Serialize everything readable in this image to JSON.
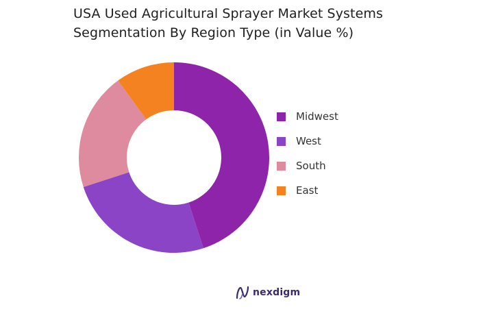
{
  "title": {
    "line1": "USA Used Agricultural Sprayer Market Systems",
    "line2": "Segmentation By Region Type (in Value %)"
  },
  "chart_data": {
    "type": "pie",
    "variant": "donut",
    "title": "USA Used Agricultural Sprayer Market Systems Segmentation By Region Type (in Value %)",
    "unit": "%",
    "slices": [
      {
        "label": "Midwest",
        "value": 45,
        "color": "#8e24aa"
      },
      {
        "label": "West",
        "value": 25,
        "color": "#8b44c5"
      },
      {
        "label": "South",
        "value": 20,
        "color": "#de8a9f"
      },
      {
        "label": "East",
        "value": 10,
        "color": "#f58220"
      }
    ],
    "legend_position": "right"
  },
  "brand": {
    "name": "nexdigm",
    "color": "#3a2a6e"
  }
}
